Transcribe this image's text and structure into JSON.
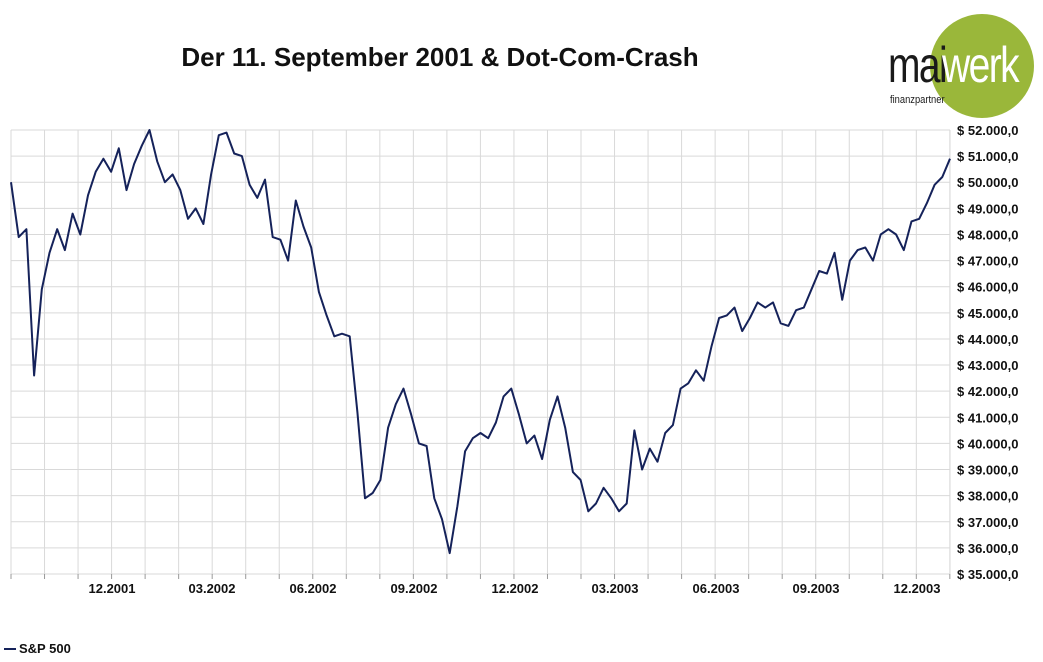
{
  "title": "Der 11. September 2001 & Dot-Com-Crash",
  "logo": {
    "main": "mai",
    "accent": "werk",
    "sub": "finanzpartner",
    "accent_color": "#9ab73a"
  },
  "legend": {
    "label": "S&P 500"
  },
  "colors": {
    "line": "#15225a",
    "grid": "#d9d9d9"
  },
  "chart_data": {
    "type": "line",
    "title": "Der 11. September 2001 & Dot-Com-Crash",
    "ylim": [
      35000,
      52000
    ],
    "y_ticks": [
      52000,
      51000,
      50000,
      49000,
      48000,
      47000,
      46000,
      45000,
      44000,
      43000,
      42000,
      41000,
      40000,
      39000,
      38000,
      37000,
      36000,
      35000
    ],
    "y_tick_labels": [
      "$ 52.000,0",
      "$ 51.000,0",
      "$ 50.000,0",
      "$ 49.000,0",
      "$ 48.000,0",
      "$ 47.000,0",
      "$ 46.000,0",
      "$ 45.000,0",
      "$ 44.000,0",
      "$ 43.000,0",
      "$ 42.000,0",
      "$ 41.000,0",
      "$ 40.000,0",
      "$ 39.000,0",
      "$ 38.000,0",
      "$ 37.000,0",
      "$ 36.000,0",
      "$ 35.000,0"
    ],
    "x_ticks": [
      "12.2001",
      "03.2002",
      "06.2002",
      "09.2002",
      "12.2002",
      "03.2003",
      "06.2003",
      "09.2003",
      "12.2003"
    ],
    "grid": true,
    "legend_position": "bottom-left",
    "series": [
      {
        "name": "S&P 500",
        "values": [
          50000,
          47900,
          48200,
          42600,
          45900,
          47300,
          48200,
          47400,
          48800,
          48000,
          49500,
          50400,
          50900,
          50400,
          51300,
          49700,
          50700,
          51400,
          52000,
          50800,
          50000,
          50300,
          49700,
          48600,
          49000,
          48400,
          50300,
          51800,
          51900,
          51100,
          51000,
          49900,
          49400,
          50100,
          47900,
          47800,
          47000,
          49300,
          48300,
          47500,
          45800,
          44900,
          44100,
          44200,
          44100,
          41200,
          37900,
          38100,
          38600,
          40600,
          41500,
          42100,
          41100,
          40000,
          39900,
          37900,
          37100,
          35800,
          37600,
          39700,
          40200,
          40400,
          40200,
          40800,
          41800,
          42100,
          41100,
          40000,
          40300,
          39400,
          40900,
          41800,
          40600,
          38900,
          38600,
          37400,
          37700,
          38300,
          37900,
          37400,
          37700,
          40500,
          39000,
          39800,
          39300,
          40400,
          40700,
          42100,
          42300,
          42800,
          42400,
          43700,
          44800,
          44900,
          45200,
          44300,
          44800,
          45400,
          45200,
          45400,
          44600,
          44500,
          45100,
          45200,
          45900,
          46600,
          46500,
          47300,
          45500,
          47000,
          47400,
          47500,
          47000,
          48000,
          48200,
          48000,
          47400,
          48500,
          48600,
          49200,
          49900,
          50200,
          50900
        ]
      }
    ]
  }
}
